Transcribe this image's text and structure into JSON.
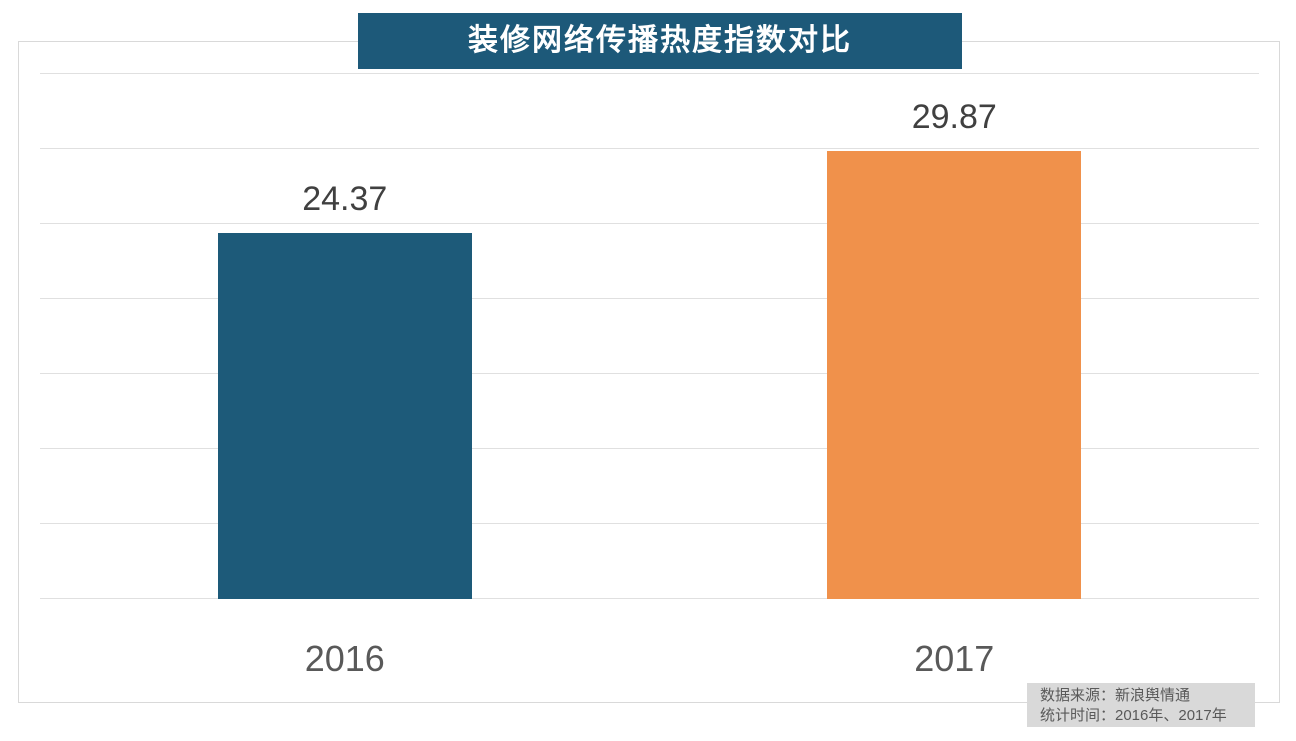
{
  "title_banner": {
    "text": "装修网络传播热度指数对比",
    "bg_color": "#1D5979",
    "text_color": "#FFFFFF"
  },
  "chart_data": {
    "type": "bar",
    "title": "装修网络传播热度指数对比",
    "categories": [
      "2016",
      "2017"
    ],
    "values": [
      24.37,
      29.87
    ],
    "bar_colors": [
      "#1D5A79",
      "#F0914B"
    ],
    "value_labels": [
      "24.37",
      "29.87"
    ],
    "xlabel": "",
    "ylabel": "",
    "ylim": [
      0,
      35
    ],
    "grid_step": 5,
    "grid": "on",
    "legend": "none",
    "gridline_color": "#E0E0E0",
    "value_label_color": "#404040",
    "category_label_color": "#595959"
  },
  "source_note": {
    "line1": "数据来源：新浪舆情通",
    "line2": "统计时间：2016年、2017年",
    "bg_color": "#D9D9D9",
    "text_color": "#595959"
  }
}
